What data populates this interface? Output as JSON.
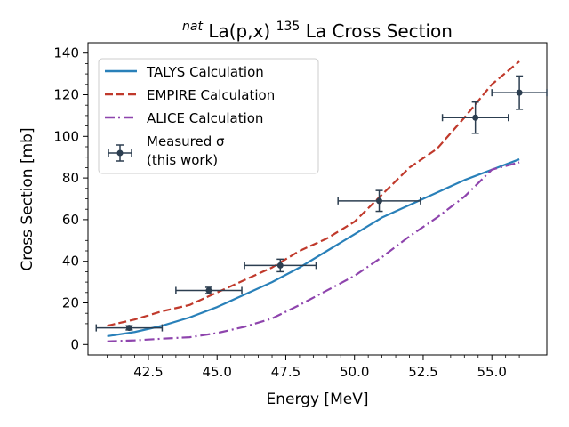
{
  "chart_data": {
    "type": "line",
    "title": "natLa(p,x)135La Cross Section",
    "title_parts": {
      "prefix_sup": "nat",
      "base": "La(p,x)",
      "mass_sup": "135",
      "tail": "La Cross Section"
    },
    "xlabel": "Energy [MeV]",
    "ylabel": "Cross Section [mb]",
    "xlim": [
      40.3,
      57.0
    ],
    "ylim": [
      -5,
      145
    ],
    "xticks": [
      42.5,
      45.0,
      47.5,
      50.0,
      52.5,
      55.0
    ],
    "xtick_labels": [
      "42.5",
      "45.0",
      "47.5",
      "50.0",
      "52.5",
      "55.0"
    ],
    "yticks": [
      0,
      20,
      40,
      60,
      80,
      100,
      120,
      140
    ],
    "ytick_labels": [
      "0",
      "20",
      "40",
      "60",
      "80",
      "100",
      "120",
      "140"
    ],
    "legend_position": "upper-left",
    "series": [
      {
        "name": "TALYS Calculation",
        "color": "#2980b9",
        "style": "solid",
        "x": [
          41.0,
          42.0,
          43.0,
          44.0,
          45.0,
          46.0,
          47.0,
          48.0,
          49.0,
          50.0,
          51.0,
          52.0,
          53.0,
          54.0,
          55.0,
          56.0
        ],
        "y": [
          4.0,
          6.0,
          9.0,
          13.0,
          18.0,
          24.0,
          30.0,
          37.0,
          45.0,
          53.0,
          61.0,
          67.0,
          73.0,
          79.0,
          84.0,
          89.0
        ]
      },
      {
        "name": "EMPIRE Calculation",
        "color": "#c0392b",
        "style": "dashed",
        "x": [
          41.0,
          42.0,
          43.0,
          44.0,
          45.0,
          46.0,
          47.0,
          48.0,
          49.0,
          50.0,
          51.0,
          52.0,
          53.0,
          54.0,
          55.0,
          56.0
        ],
        "y": [
          9.0,
          12.0,
          16.0,
          19.0,
          25.0,
          31.0,
          37.0,
          45.0,
          51.0,
          59.0,
          72.0,
          85.0,
          94.0,
          109.0,
          125.0,
          136.0
        ]
      },
      {
        "name": "ALICE Calculation",
        "color": "#8e44ad",
        "style": "dashdot",
        "x": [
          41.0,
          42.0,
          43.0,
          44.0,
          45.0,
          46.0,
          47.0,
          48.0,
          49.0,
          50.0,
          51.0,
          52.0,
          53.0,
          54.0,
          55.0,
          56.0
        ],
        "y": [
          1.5,
          2.0,
          2.8,
          3.5,
          5.5,
          8.5,
          12.5,
          19.0,
          26.0,
          33.0,
          42.0,
          52.0,
          61.0,
          71.0,
          84.0,
          87.5
        ]
      }
    ],
    "measured": {
      "name_line1": "Measured σ",
      "name_line2": "(this work)",
      "color": "#2c3e50",
      "points": [
        {
          "x": 41.8,
          "y": 8.0,
          "xerr": 1.2,
          "yerr": 1.0
        },
        {
          "x": 44.7,
          "y": 26.0,
          "xerr": 1.2,
          "yerr": 1.5
        },
        {
          "x": 47.3,
          "y": 38.0,
          "xerr": 1.3,
          "yerr": 3.0
        },
        {
          "x": 50.9,
          "y": 69.0,
          "xerr": 1.5,
          "yerr": 5.0
        },
        {
          "x": 54.4,
          "y": 109.0,
          "xerr": 1.2,
          "yerr": 7.5
        },
        {
          "x": 56.0,
          "y": 121.0,
          "xerr": 1.0,
          "yerr": 8.0
        }
      ]
    }
  }
}
